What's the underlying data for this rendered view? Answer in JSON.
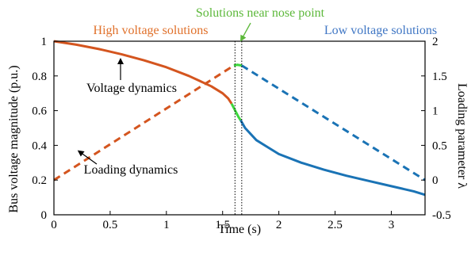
{
  "chart_data": {
    "type": "line",
    "xlabel": "Time (s)",
    "ylabel_left": "Bus voltage magnitude (p.u.)",
    "ylabel_right": "Loading parameter λ",
    "xlim": [
      0,
      3.3
    ],
    "ylim_left": [
      0,
      1
    ],
    "ylim_right": [
      -0.5,
      2
    ],
    "x_ticks": [
      "0",
      "0.5",
      "1",
      "1.5",
      "2",
      "2.5",
      "3"
    ],
    "y_left_ticks": [
      "0",
      "0.2",
      "0.4",
      "0.6",
      "0.8",
      "1"
    ],
    "y_right_ticks": [
      "-0.5",
      "0",
      "0.5",
      "1",
      "1.5",
      "2"
    ],
    "grid": false,
    "colors": {
      "high": "#d4551f",
      "low": "#1a73b5",
      "nose": "#3dd63d",
      "text_high": "#e0702a",
      "text_low": "#3f76c4",
      "text_nose": "#5cb83a"
    },
    "vertical_markers_x": [
      1.61,
      1.67
    ],
    "series": [
      {
        "axis": "left",
        "style": "solid",
        "segment": "high",
        "x": [
          0,
          0.2,
          0.4,
          0.6,
          0.8,
          1.0,
          1.2,
          1.4,
          1.5,
          1.55,
          1.58
        ],
        "y": [
          1.0,
          0.98,
          0.955,
          0.925,
          0.89,
          0.85,
          0.8,
          0.74,
          0.7,
          0.67,
          0.64
        ]
      },
      {
        "axis": "left",
        "style": "solid",
        "segment": "nose",
        "x": [
          1.58,
          1.6,
          1.62,
          1.64,
          1.66
        ],
        "y": [
          0.64,
          0.615,
          0.59,
          0.565,
          0.545
        ]
      },
      {
        "axis": "left",
        "style": "solid",
        "segment": "low",
        "x": [
          1.66,
          1.7,
          1.8,
          1.9,
          2.0,
          2.2,
          2.4,
          2.6,
          2.8,
          3.0,
          3.2,
          3.3
        ],
        "y": [
          0.545,
          0.5,
          0.43,
          0.39,
          0.35,
          0.3,
          0.26,
          0.225,
          0.195,
          0.165,
          0.135,
          0.115
        ]
      },
      {
        "axis": "right",
        "style": "dashed",
        "segment": "high",
        "x": [
          0,
          1.6
        ],
        "y": [
          0,
          1.65
        ]
      },
      {
        "axis": "right",
        "style": "solid",
        "segment": "nose",
        "x": [
          1.6,
          1.63,
          1.67
        ],
        "y": [
          1.65,
          1.66,
          1.65
        ]
      },
      {
        "axis": "right",
        "style": "dashed",
        "segment": "low",
        "x": [
          1.67,
          3.3
        ],
        "y": [
          1.65,
          0
        ]
      }
    ],
    "annotations": {
      "high": "High voltage solutions",
      "low": "Low voltage solutions",
      "nose": "Solutions near nose point",
      "voltage": "Voltage dynamics",
      "loading": "Loading dynamics"
    }
  }
}
